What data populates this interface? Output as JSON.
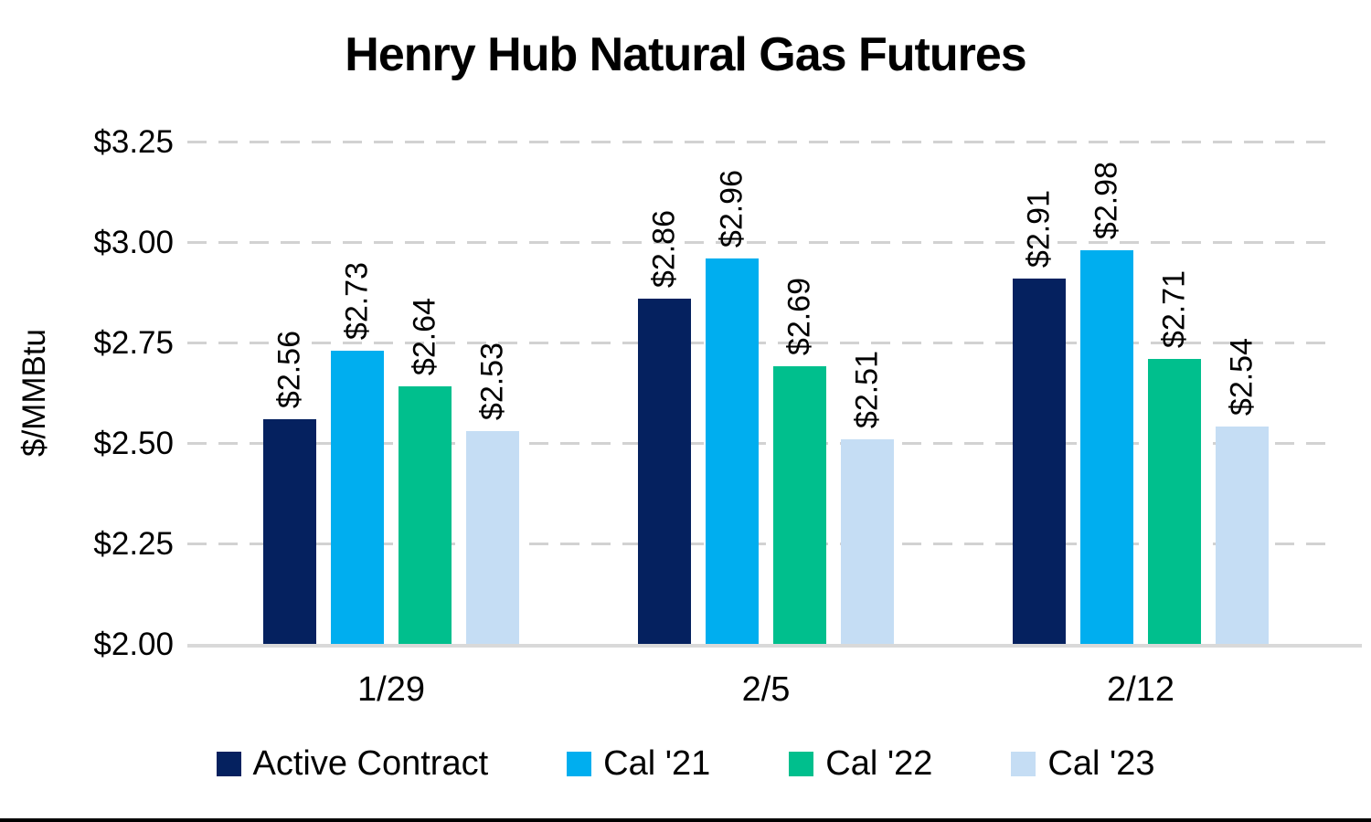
{
  "chart_data": {
    "type": "bar",
    "title": "Henry Hub Natural Gas Futures",
    "ylabel": "$/MMBtu",
    "xlabel": "",
    "categories": [
      "1/29",
      "2/5",
      "2/12"
    ],
    "series": [
      {
        "name": "Active Contract",
        "color": "#05215F",
        "values": [
          2.56,
          2.86,
          2.91
        ],
        "labels": [
          "$2.56",
          "$2.86",
          "$2.91"
        ]
      },
      {
        "name": "Cal '21",
        "color": "#00AEEF",
        "values": [
          2.73,
          2.96,
          2.98
        ],
        "labels": [
          "$2.73",
          "$2.96",
          "$2.98"
        ]
      },
      {
        "name": "Cal '22",
        "color": "#00BF8D",
        "values": [
          2.64,
          2.69,
          2.71
        ],
        "labels": [
          "$2.64",
          "$2.69",
          "$2.71"
        ]
      },
      {
        "name": "Cal '23",
        "color": "#C5DDF4",
        "values": [
          2.53,
          2.51,
          2.54
        ],
        "labels": [
          "$2.53",
          "$2.51",
          "$2.54"
        ]
      }
    ],
    "ylim": [
      2.0,
      3.25
    ],
    "ytick_step": 0.25,
    "ytick_labels": [
      "$2.00",
      "$2.25",
      "$2.50",
      "$2.75",
      "$3.00",
      "$3.25"
    ],
    "grid": "dashed-horizontal",
    "legend_position": "bottom",
    "data_labels_rotated": true
  },
  "colors": {
    "background": "#FFFFFF",
    "gridline": "#D2D2D2",
    "axis_line": "#D9D9D9",
    "text": "#000000",
    "bottom_rule": "#000000"
  }
}
